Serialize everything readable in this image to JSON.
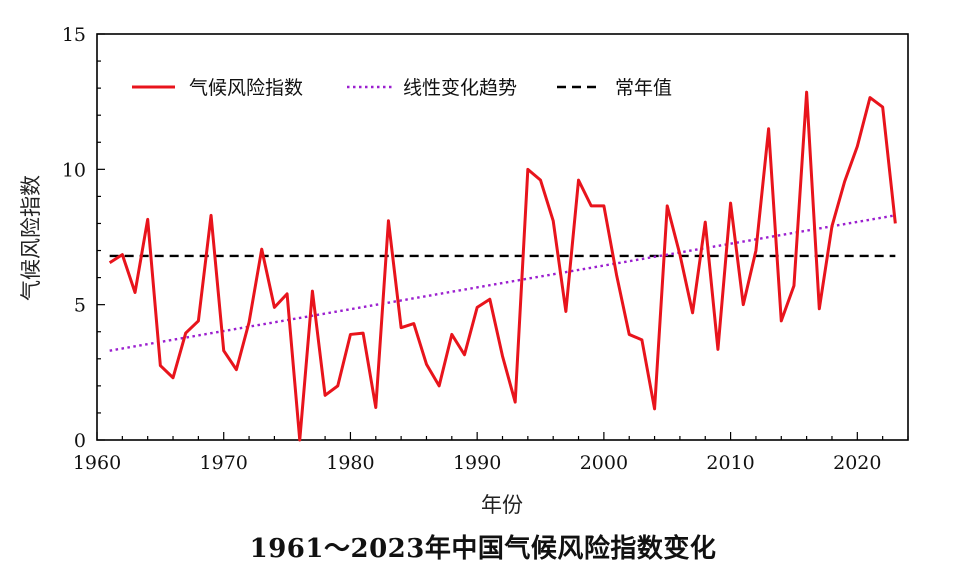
{
  "caption": "1961～2023年中国气候风险指数变化",
  "chart_data": {
    "type": "line",
    "xlabel": "年份",
    "ylabel": "气候风险指数",
    "xlim": [
      1960,
      2024
    ],
    "ylim": [
      0,
      15
    ],
    "xticks": [
      1960,
      1970,
      1980,
      1990,
      2000,
      2010,
      2020
    ],
    "yticks": [
      0,
      5,
      10,
      15
    ],
    "grid": false,
    "legend_position": "top",
    "x": [
      1961,
      1962,
      1963,
      1964,
      1965,
      1966,
      1967,
      1968,
      1969,
      1970,
      1971,
      1972,
      1973,
      1974,
      1975,
      1976,
      1977,
      1978,
      1979,
      1980,
      1981,
      1982,
      1983,
      1984,
      1985,
      1986,
      1987,
      1988,
      1989,
      1990,
      1991,
      1992,
      1993,
      1994,
      1995,
      1996,
      1997,
      1998,
      1999,
      2000,
      2001,
      2002,
      2003,
      2004,
      2005,
      2006,
      2007,
      2008,
      2009,
      2010,
      2011,
      2012,
      2013,
      2014,
      2015,
      2016,
      2017,
      2018,
      2019,
      2020,
      2021,
      2022,
      2023
    ],
    "series": [
      {
        "name": "气候风险指数",
        "style": "solid",
        "color": "#e8141c",
        "values": [
          6.55,
          6.85,
          5.45,
          8.15,
          2.75,
          2.3,
          3.95,
          4.4,
          8.3,
          3.3,
          2.6,
          4.35,
          7.05,
          4.9,
          5.4,
          0.0,
          5.5,
          1.65,
          2.0,
          3.9,
          3.95,
          1.2,
          8.1,
          4.15,
          4.3,
          2.8,
          2.0,
          3.9,
          3.15,
          4.9,
          5.2,
          3.1,
          1.4,
          10.0,
          9.6,
          8.1,
          4.75,
          9.6,
          8.65,
          8.65,
          6.1,
          3.9,
          3.7,
          1.15,
          8.65,
          6.85,
          4.7,
          8.05,
          3.35,
          8.75,
          5.0,
          7.0,
          11.5,
          4.4,
          5.7,
          12.85,
          4.85,
          7.9,
          9.55,
          10.85,
          12.65,
          12.3,
          8.0
        ]
      },
      {
        "name": "线性变化趋势",
        "style": "dotted",
        "color": "#9b1fcf",
        "x": [
          1961,
          2023
        ],
        "values": [
          3.3,
          8.3
        ]
      },
      {
        "name": "常年值",
        "style": "dashed",
        "color": "#000000",
        "x": [
          1961,
          2023
        ],
        "values": [
          6.8,
          6.8
        ]
      }
    ]
  }
}
